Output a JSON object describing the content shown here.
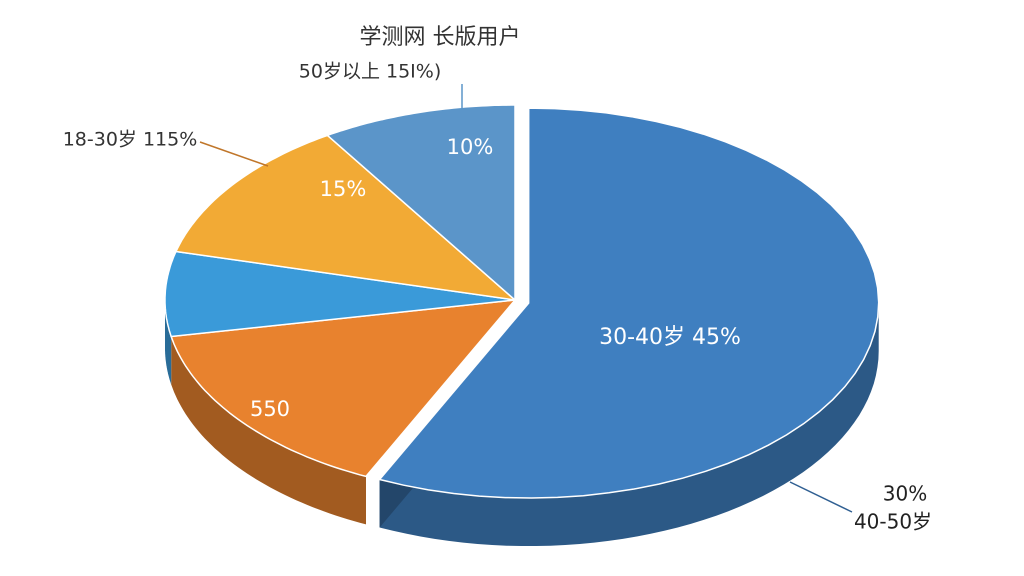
{
  "chart_data": {
    "type": "pie",
    "title": "学测网 长版用户",
    "values": [
      57,
      15,
      7,
      12,
      9
    ],
    "colors": [
      "#3f7fc0",
      "#e8822e",
      "#3a9ad9",
      "#f2aa35",
      "#5b95c9"
    ],
    "annotations": [
      "50岁以上 15I%)",
      "18-30岁 115%",
      "10%",
      "15%",
      "30-40岁 45%",
      "550",
      "30%",
      "40-50岁"
    ]
  }
}
